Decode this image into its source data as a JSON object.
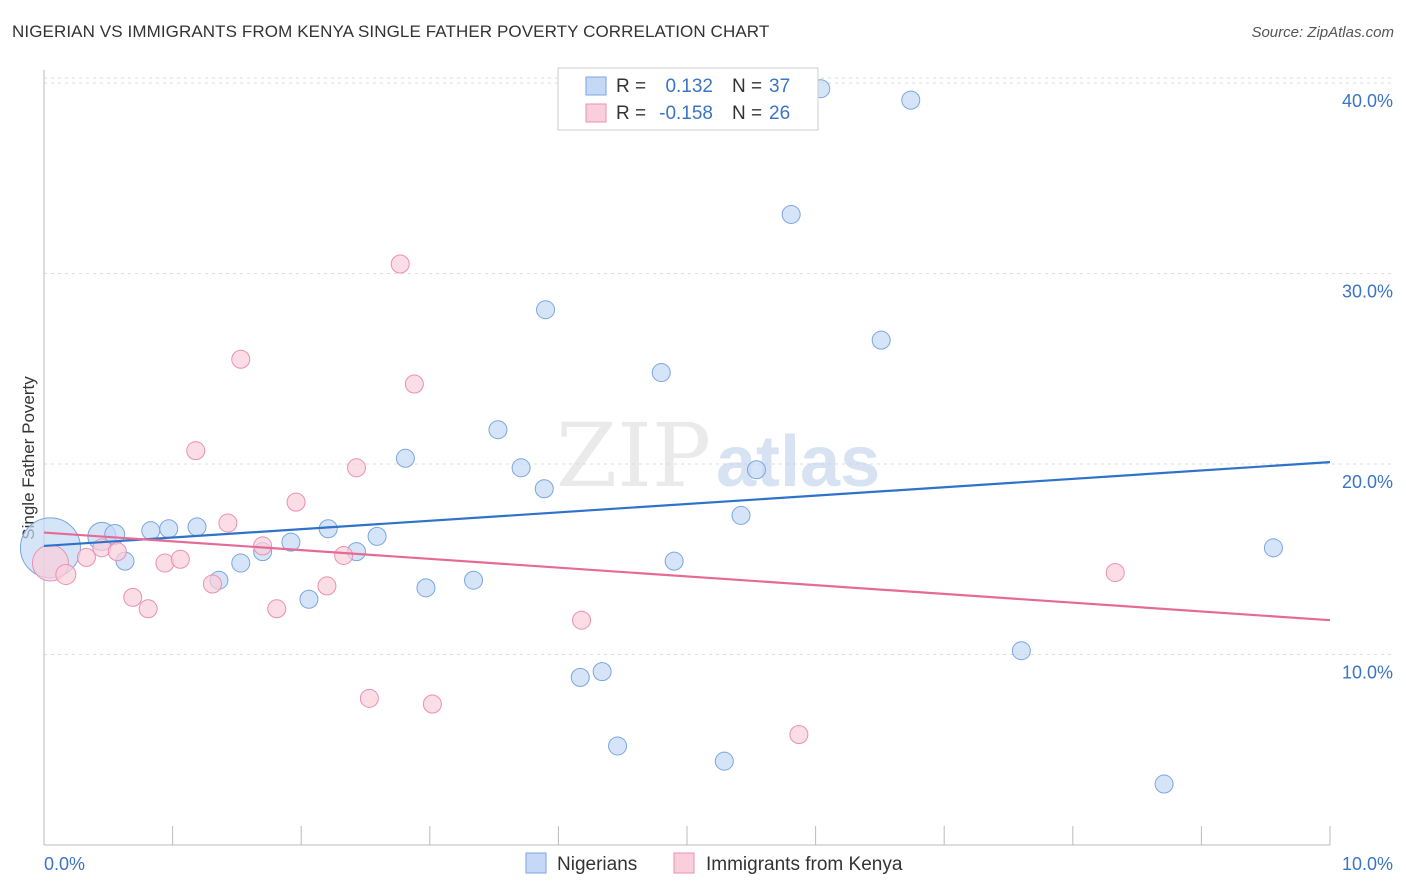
{
  "header": {
    "title": "NIGERIAN VS IMMIGRANTS FROM KENYA SINGLE FATHER POVERTY CORRELATION CHART",
    "source": "Source: ZipAtlas.com"
  },
  "watermark": {
    "zip": "ZIP",
    "atlas": "atlas"
  },
  "colors": {
    "blue_fill": "#c5d8f5",
    "blue_stroke": "#7aa6e0",
    "blue_line": "#2f72c9",
    "pink_fill": "#f9cfdc",
    "pink_stroke": "#eb8fb0",
    "pink_line": "#e56b96",
    "grid": "#dddddd",
    "axis_text": "#3b74c6"
  },
  "legend_top": {
    "rows": [
      {
        "r_label": "R =",
        "r_value": "0.132",
        "n_label": "N =",
        "n_value": "37"
      },
      {
        "r_label": "R =",
        "r_value": "-0.158",
        "n_label": "N =",
        "n_value": "26"
      }
    ]
  },
  "chart_data": {
    "type": "scatter",
    "title": "NIGERIAN VS IMMIGRANTS FROM KENYA SINGLE FATHER POVERTY CORRELATION CHART",
    "xlabel": "",
    "ylabel": "Single Father Poverty",
    "xlim": [
      0,
      10
    ],
    "ylim": [
      0,
      41
    ],
    "x_tick_labels": [
      "0.0%",
      "10.0%"
    ],
    "y_ticks": [
      10,
      20,
      30,
      40
    ],
    "y_tick_labels": [
      "10.0%",
      "20.0%",
      "30.0%",
      "40.0%"
    ],
    "grid": true,
    "legend_position": "bottom",
    "series": [
      {
        "name": "Nigerians",
        "color": "#7aa6e0",
        "trend": {
          "x": [
            0,
            10
          ],
          "y": [
            15.7,
            20.1
          ]
        },
        "points": [
          {
            "x": 0.05,
            "y": 15.6,
            "size": 30
          },
          {
            "x": 0.45,
            "y": 16.2,
            "size": 14
          },
          {
            "x": 0.55,
            "y": 16.3,
            "size": 10
          },
          {
            "x": 0.63,
            "y": 14.9,
            "size": 9
          },
          {
            "x": 0.83,
            "y": 16.5,
            "size": 9
          },
          {
            "x": 0.97,
            "y": 16.6,
            "size": 9
          },
          {
            "x": 1.19,
            "y": 16.7,
            "size": 9
          },
          {
            "x": 1.36,
            "y": 13.9,
            "size": 9
          },
          {
            "x": 1.53,
            "y": 14.8,
            "size": 9
          },
          {
            "x": 1.7,
            "y": 15.4,
            "size": 9
          },
          {
            "x": 1.92,
            "y": 15.9,
            "size": 9
          },
          {
            "x": 2.06,
            "y": 12.9,
            "size": 9
          },
          {
            "x": 2.21,
            "y": 16.6,
            "size": 9
          },
          {
            "x": 2.43,
            "y": 15.4,
            "size": 9
          },
          {
            "x": 2.59,
            "y": 16.2,
            "size": 9
          },
          {
            "x": 2.81,
            "y": 20.3,
            "size": 9
          },
          {
            "x": 2.97,
            "y": 13.5,
            "size": 9
          },
          {
            "x": 3.34,
            "y": 13.9,
            "size": 9
          },
          {
            "x": 3.53,
            "y": 21.8,
            "size": 9
          },
          {
            "x": 3.71,
            "y": 19.8,
            "size": 9
          },
          {
            "x": 3.89,
            "y": 18.7,
            "size": 9
          },
          {
            "x": 3.9,
            "y": 28.1,
            "size": 9
          },
          {
            "x": 4.17,
            "y": 8.8,
            "size": 9
          },
          {
            "x": 4.34,
            "y": 9.1,
            "size": 9
          },
          {
            "x": 4.46,
            "y": 5.2,
            "size": 9
          },
          {
            "x": 4.8,
            "y": 24.8,
            "size": 9
          },
          {
            "x": 4.9,
            "y": 14.9,
            "size": 9
          },
          {
            "x": 5.29,
            "y": 4.4,
            "size": 9
          },
          {
            "x": 5.42,
            "y": 17.3,
            "size": 9
          },
          {
            "x": 5.54,
            "y": 19.7,
            "size": 9
          },
          {
            "x": 5.81,
            "y": 33.1,
            "size": 9
          },
          {
            "x": 6.04,
            "y": 39.7,
            "size": 9
          },
          {
            "x": 6.51,
            "y": 26.5,
            "size": 9
          },
          {
            "x": 6.74,
            "y": 39.1,
            "size": 9
          },
          {
            "x": 7.6,
            "y": 10.2,
            "size": 9
          },
          {
            "x": 8.71,
            "y": 3.2,
            "size": 9
          },
          {
            "x": 9.56,
            "y": 15.6,
            "size": 9
          }
        ]
      },
      {
        "name": "Immigrants from Kenya",
        "color": "#eb8fb0",
        "trend": {
          "x": [
            0,
            10
          ],
          "y": [
            16.4,
            11.8
          ]
        },
        "points": [
          {
            "x": 0.05,
            "y": 14.8,
            "size": 18
          },
          {
            "x": 0.17,
            "y": 14.2,
            "size": 10
          },
          {
            "x": 0.33,
            "y": 15.1,
            "size": 9
          },
          {
            "x": 0.45,
            "y": 15.6,
            "size": 9
          },
          {
            "x": 0.57,
            "y": 15.4,
            "size": 9
          },
          {
            "x": 0.69,
            "y": 13.0,
            "size": 9
          },
          {
            "x": 0.81,
            "y": 12.4,
            "size": 9
          },
          {
            "x": 0.94,
            "y": 14.8,
            "size": 9
          },
          {
            "x": 1.06,
            "y": 15.0,
            "size": 9
          },
          {
            "x": 1.18,
            "y": 20.7,
            "size": 9
          },
          {
            "x": 1.31,
            "y": 13.7,
            "size": 9
          },
          {
            "x": 1.43,
            "y": 16.9,
            "size": 9
          },
          {
            "x": 1.53,
            "y": 25.5,
            "size": 9
          },
          {
            "x": 1.7,
            "y": 15.7,
            "size": 9
          },
          {
            "x": 1.81,
            "y": 12.4,
            "size": 9
          },
          {
            "x": 1.96,
            "y": 18.0,
            "size": 9
          },
          {
            "x": 2.2,
            "y": 13.6,
            "size": 9
          },
          {
            "x": 2.33,
            "y": 15.2,
            "size": 9
          },
          {
            "x": 2.43,
            "y": 19.8,
            "size": 9
          },
          {
            "x": 2.53,
            "y": 7.7,
            "size": 9
          },
          {
            "x": 2.77,
            "y": 30.5,
            "size": 9
          },
          {
            "x": 2.88,
            "y": 24.2,
            "size": 9
          },
          {
            "x": 3.02,
            "y": 7.4,
            "size": 9
          },
          {
            "x": 4.18,
            "y": 11.8,
            "size": 9
          },
          {
            "x": 5.87,
            "y": 5.8,
            "size": 9
          },
          {
            "x": 8.33,
            "y": 14.3,
            "size": 9
          }
        ]
      }
    ]
  }
}
